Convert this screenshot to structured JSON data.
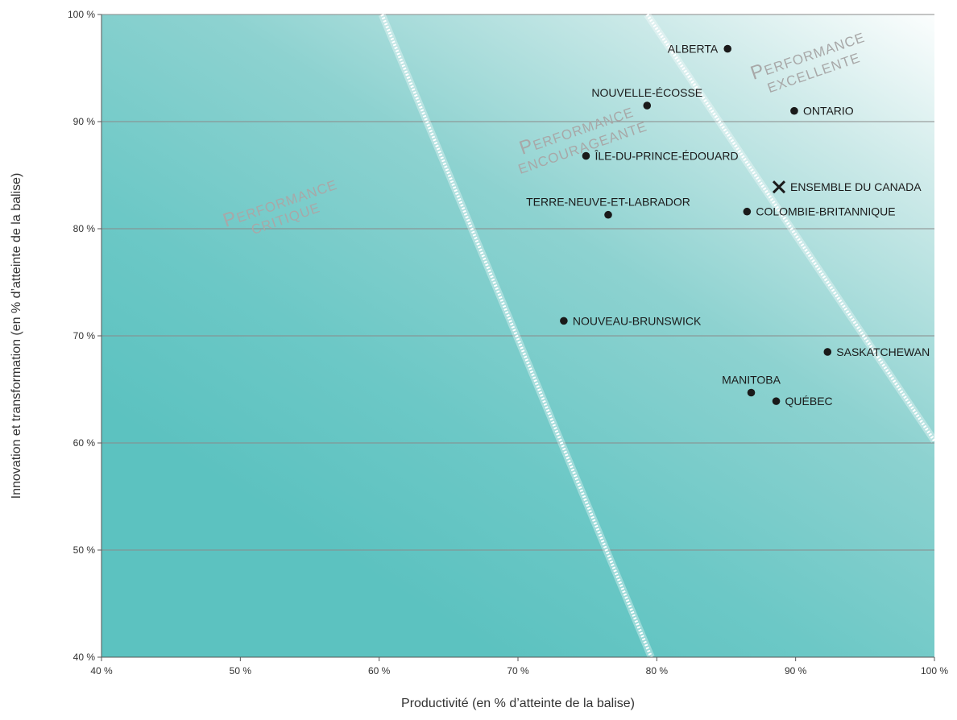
{
  "chart_data": {
    "type": "scatter",
    "title": "",
    "xlabel": "Productivité (en % d’atteinte de la balise)",
    "ylabel": "Innovation et transformation (en % d’atteinte de la balise)",
    "xlim": [
      40,
      100
    ],
    "ylim": [
      40,
      100
    ],
    "x_ticks": [
      "40 %",
      "50 %",
      "60 %",
      "70 %",
      "80 %",
      "90 %",
      "100 %"
    ],
    "y_ticks": [
      "40 %",
      "50 %",
      "60 %",
      "70 %",
      "80 %",
      "90 %",
      "100 %"
    ],
    "grid": "horizontal",
    "points": [
      {
        "label": "ALBERTA",
        "x": 85.1,
        "y": 96.8,
        "marker": "dot"
      },
      {
        "label": "NOUVELLE-ÉCOSSE",
        "x": 79.3,
        "y": 91.5,
        "marker": "dot"
      },
      {
        "label": "ONTARIO",
        "x": 89.9,
        "y": 91.0,
        "marker": "dot"
      },
      {
        "label": "ÎLE-DU-PRINCE-ÉDOUARD",
        "x": 74.9,
        "y": 86.8,
        "marker": "dot"
      },
      {
        "label": "ENSEMBLE DU CANADA",
        "x": 88.8,
        "y": 83.9,
        "marker": "cross"
      },
      {
        "label": "TERRE-NEUVE-ET-LABRADOR",
        "x": 76.5,
        "y": 81.3,
        "marker": "dot"
      },
      {
        "label": "COLOMBIE-BRITANNIQUE",
        "x": 86.5,
        "y": 81.6,
        "marker": "dot"
      },
      {
        "label": "NOUVEAU-BRUNSWICK",
        "x": 73.3,
        "y": 71.4,
        "marker": "dot"
      },
      {
        "label": "SASKATCHEWAN",
        "x": 92.3,
        "y": 68.5,
        "marker": "dot"
      },
      {
        "label": "MANITOBA",
        "x": 86.8,
        "y": 64.7,
        "marker": "dot"
      },
      {
        "label": "QUÉBEC",
        "x": 88.6,
        "y": 63.9,
        "marker": "dot"
      }
    ],
    "zones": [
      {
        "name": "critique",
        "lines": [
          "Performance",
          "critique"
        ]
      },
      {
        "name": "encourageante",
        "lines": [
          "Performance",
          "encourageante"
        ]
      },
      {
        "name": "excellente",
        "lines": [
          "Performance",
          "excellente"
        ]
      }
    ],
    "boundaries": [
      {
        "name": "critique-encourageante",
        "from": [
          60.2,
          100
        ],
        "to": [
          79.6,
          40
        ]
      },
      {
        "name": "encourageante-excellente",
        "from": [
          79.3,
          100
        ],
        "to": [
          100,
          60.2
        ]
      }
    ],
    "colors": {
      "background_dark": "#5cc2c0",
      "background_light": "#ffffff",
      "marker": "#1a1a1a",
      "zone_text": "#a8a8a8",
      "grid": "#8a8a8a"
    }
  }
}
